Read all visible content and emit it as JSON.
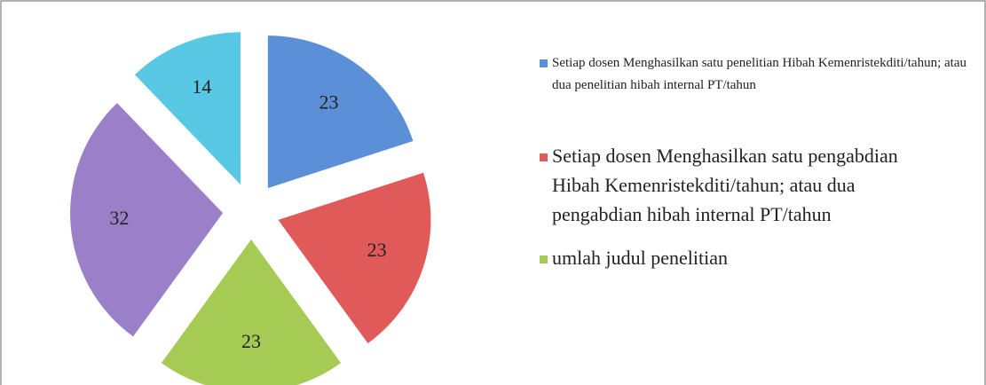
{
  "chart_data": {
    "type": "pie",
    "categories": [
      "Setiap dosen Menghasilkan satu penelitian Hibah Kemenristekditi/tahun; atau dua penelitian hibah internal PT/tahun",
      "Setiap dosen Menghasilkan satu pengabdian Hibah Kemenristekditi/tahun; atau dua pengabdian hibah internal PT/tahun",
      "umlah judul  penelitian",
      null,
      null
    ],
    "values": [
      23,
      23,
      23,
      32,
      14
    ],
    "colors": [
      "#5b8fd8",
      "#e05a5a",
      "#a6cb55",
      "#9b80c9",
      "#58c8e4"
    ]
  }
}
